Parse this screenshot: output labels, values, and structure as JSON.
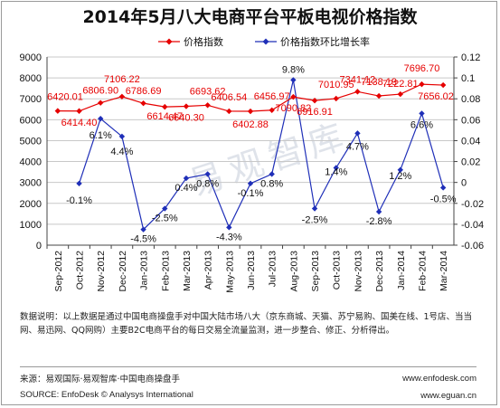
{
  "title": "2014年5月八大电商平台平板电视价格指数",
  "watermark_text": "易观智库",
  "note": "数据说明：以上数据是通过中国电商操盘手对中国大陆市场八大（京东商城、天猫、苏宁易购、国美在线、1号店、当当网、易迅网、QQ网购）主要B2C电商平台的每日交易全流量监测，进一步整合、修正、分析得出。",
  "source_cn": "来源：易观国际·易观智库·中国电商操盘手",
  "source_en": "SOURCE: EnfoDesk © Analysys International",
  "website1": "www.enfodesk.com",
  "website2": "www.eguan.cn",
  "colors": {
    "index": "#e60000",
    "growth": "#1f2fb8",
    "grid": "#c8c8c8"
  },
  "chart_data": {
    "type": "line",
    "categories": [
      "Sep-2012",
      "Oct-2012",
      "Nov-2012",
      "Dec-2012",
      "Jan-2013",
      "Feb-2013",
      "Mar-2013",
      "Apr-2013",
      "May-2013",
      "Jun-2013",
      "Jul-2013",
      "Aug-2013",
      "Sep-2013",
      "Oct-2013",
      "Nov-2013",
      "Dec-2013",
      "Jan-2014",
      "Feb-2014",
      "Mar-2014"
    ],
    "series": [
      {
        "name": "价格指数",
        "axis": "left",
        "values": [
          6420.01,
          6414.4,
          6806.9,
          7106.22,
          6786.69,
          6614.47,
          6640.3,
          6693.62,
          6406.54,
          6402.88,
          6456.97,
          7090.82,
          6916.91,
          7010.95,
          7341.12,
          7138.19,
          7222.81,
          7696.7,
          7656.02
        ],
        "labels": [
          "6420.01",
          "6414.40",
          "6806.90",
          "7106.22",
          "6786.69",
          "6614.47",
          "6640.30",
          "6693.62",
          "6406.54",
          "6402.88",
          "6456.97",
          "7090.82",
          "6916.91",
          "7010.95",
          "7341.12",
          "7138.19",
          "7222.81",
          "7696.70",
          "7656.02"
        ]
      },
      {
        "name": "价格指数环比增长率",
        "axis": "right",
        "values": [
          null,
          -0.1,
          6.1,
          4.4,
          -4.5,
          -2.5,
          0.4,
          0.8,
          -4.3,
          -0.1,
          0.8,
          9.8,
          -2.5,
          1.4,
          4.7,
          -2.8,
          1.2,
          6.6,
          -0.5
        ],
        "labels": [
          "",
          "-0.1%",
          "6.1%",
          "4.4%",
          "-4.5%",
          "-2.5%",
          "0.4%",
          "0.8%",
          "-4.3%",
          "-0.1%",
          "0.8%",
          "9.8%",
          "-2.5%",
          "1.4%",
          "4.7%",
          "-2.8%",
          "1.2%",
          "6.6%",
          "-0.5%"
        ]
      }
    ],
    "y_left": {
      "min": 0,
      "max": 9000,
      "ticks": [
        "0",
        "1000",
        "2000",
        "3000",
        "4000",
        "5000",
        "6000",
        "7000",
        "8000",
        "9000"
      ]
    },
    "y_right": {
      "min": -0.06,
      "max": 0.12,
      "ticks": [
        "-0.06",
        "-0.04",
        "-0.02",
        "0",
        "0.02",
        "0.04",
        "0.06",
        "0.08",
        "0.1",
        "0.12"
      ]
    },
    "grid": true,
    "legend_position": "top"
  }
}
